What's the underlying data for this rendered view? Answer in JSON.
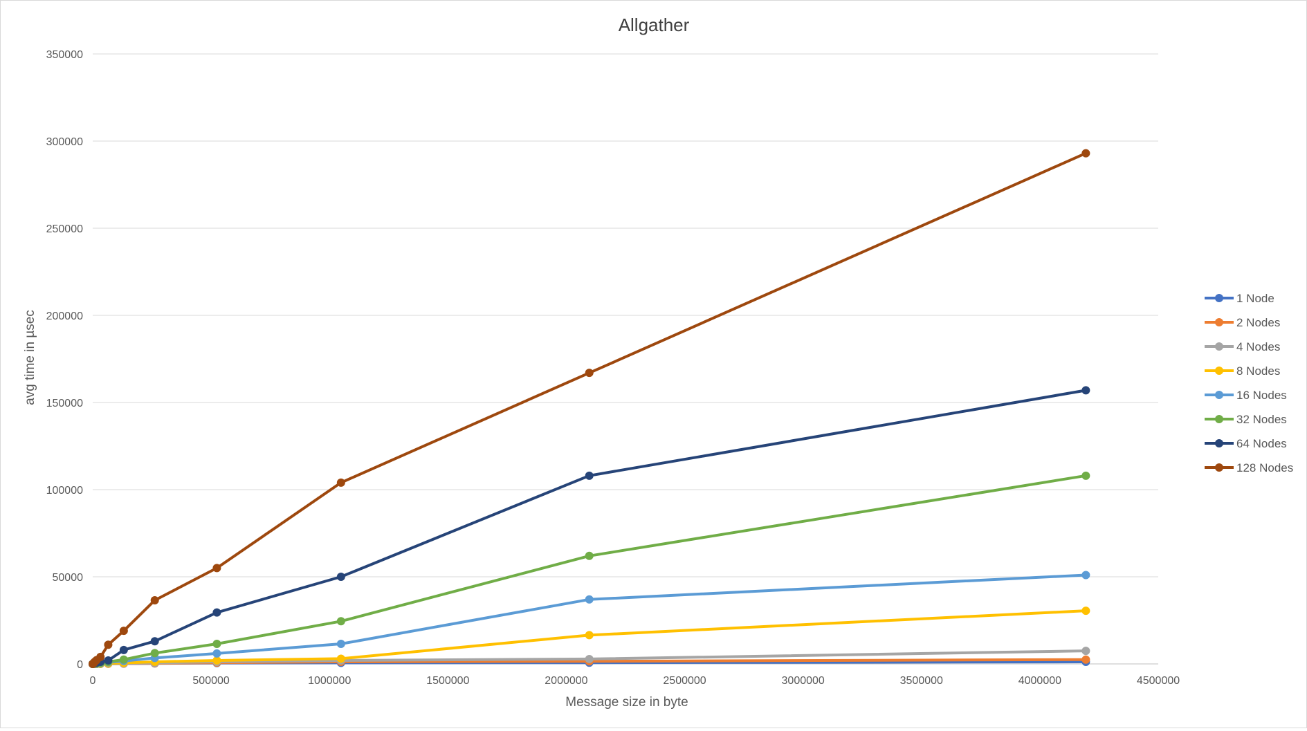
{
  "chart_data": {
    "type": "line",
    "title": "Allgather",
    "xlabel": "Message size in byte",
    "ylabel": "avg time in µsec",
    "xlim": [
      0,
      4500000
    ],
    "ylim": [
      0,
      350000
    ],
    "x_ticks": [
      "0",
      "500000",
      "1000000",
      "1500000",
      "2000000",
      "2500000",
      "3000000",
      "3500000",
      "4000000",
      "4500000"
    ],
    "y_ticks": [
      "0",
      "50000",
      "100000",
      "150000",
      "200000",
      "250000",
      "300000",
      "350000"
    ],
    "grid": true,
    "legend_position": "right",
    "x": [
      0,
      4096,
      8192,
      16384,
      32768,
      65536,
      131072,
      262144,
      524288,
      1048576,
      2097152,
      4194304
    ],
    "series": [
      {
        "name": "1 Node",
        "color": "#4472C4",
        "values": [
          0,
          5,
          10,
          20,
          40,
          80,
          160,
          300,
          500,
          600,
          700,
          1200
        ]
      },
      {
        "name": "2 Nodes",
        "color": "#ED7D31",
        "values": [
          0,
          5,
          10,
          20,
          50,
          100,
          200,
          350,
          700,
          1200,
          1500,
          2500
        ]
      },
      {
        "name": "4 Nodes",
        "color": "#A5A5A5",
        "values": [
          0,
          10,
          20,
          40,
          80,
          160,
          300,
          600,
          1200,
          2000,
          2800,
          7500
        ]
      },
      {
        "name": "8 Nodes",
        "color": "#FFC000",
        "values": [
          0,
          20,
          40,
          80,
          160,
          300,
          600,
          1200,
          2000,
          3000,
          16500,
          30500
        ]
      },
      {
        "name": "16 Nodes",
        "color": "#5B9BD5",
        "values": [
          0,
          50,
          100,
          200,
          400,
          900,
          1700,
          3400,
          6000,
          11500,
          37000,
          51000
        ]
      },
      {
        "name": "32 Nodes",
        "color": "#70AD47",
        "values": [
          0,
          100,
          200,
          300,
          600,
          1200,
          2500,
          6200,
          11500,
          24500,
          62000,
          108000
        ]
      },
      {
        "name": "64 Nodes",
        "color": "#264478",
        "values": [
          0,
          200,
          400,
          700,
          1200,
          2000,
          8000,
          13000,
          29500,
          50000,
          108000,
          157000
        ]
      },
      {
        "name": "128 Nodes",
        "color": "#9E480E",
        "values": [
          0,
          500,
          1200,
          2200,
          4000,
          11000,
          19000,
          36500,
          55000,
          104000,
          167000,
          293000
        ]
      }
    ]
  }
}
